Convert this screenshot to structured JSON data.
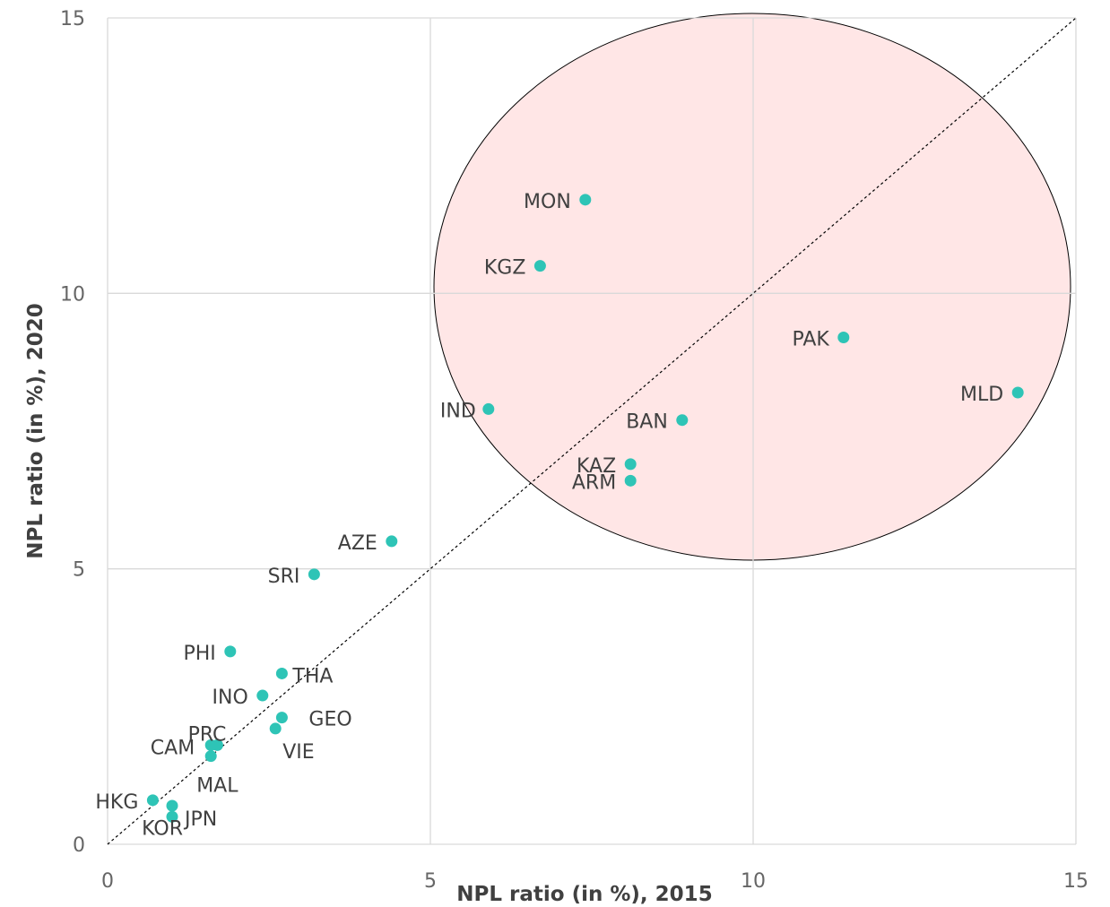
{
  "chart_data": {
    "type": "scatter",
    "title": "",
    "xlabel": "NPL ratio (in %), 2015",
    "ylabel": "NPL ratio (in %), 2020",
    "xlim": [
      0,
      15
    ],
    "ylim": [
      0,
      15
    ],
    "x_ticks": [
      "0",
      "5",
      "10",
      "15"
    ],
    "y_ticks": [
      "0",
      "5",
      "10",
      "15"
    ],
    "grid": true,
    "reference_line": "y = x (dotted)",
    "highlight_region": "ellipse",
    "colors": {
      "marker": "#2ec4b6",
      "ellipse_fill": "#ffe6e6",
      "grid": "#d9d9d9"
    },
    "points": [
      {
        "label": "MON",
        "x": 7.4,
        "y": 11.7
      },
      {
        "label": "KGZ",
        "x": 6.7,
        "y": 10.5
      },
      {
        "label": "PAK",
        "x": 11.4,
        "y": 9.2
      },
      {
        "label": "MLD",
        "x": 14.1,
        "y": 8.2
      },
      {
        "label": "IND",
        "x": 5.9,
        "y": 7.9
      },
      {
        "label": "BAN",
        "x": 8.9,
        "y": 7.7
      },
      {
        "label": "KAZ",
        "x": 8.1,
        "y": 6.9
      },
      {
        "label": "ARM",
        "x": 8.1,
        "y": 6.6
      },
      {
        "label": "AZE",
        "x": 4.4,
        "y": 5.5
      },
      {
        "label": "SRI",
        "x": 3.2,
        "y": 4.9
      },
      {
        "label": "PHI",
        "x": 1.9,
        "y": 3.5
      },
      {
        "label": "THA",
        "x": 2.7,
        "y": 3.1
      },
      {
        "label": "INO",
        "x": 2.4,
        "y": 2.7
      },
      {
        "label": "GEO",
        "x": 2.7,
        "y": 2.3
      },
      {
        "label": "VIE",
        "x": 2.6,
        "y": 2.1
      },
      {
        "label": "PRC",
        "x": 1.7,
        "y": 1.8
      },
      {
        "label": "CAM",
        "x": 1.6,
        "y": 1.8
      },
      {
        "label": "MAL",
        "x": 1.6,
        "y": 1.6
      },
      {
        "label": "HKG",
        "x": 0.7,
        "y": 0.8
      },
      {
        "label": "JPN",
        "x": 1.0,
        "y": 0.7
      },
      {
        "label": "KOR",
        "x": 1.0,
        "y": 0.5
      }
    ]
  }
}
